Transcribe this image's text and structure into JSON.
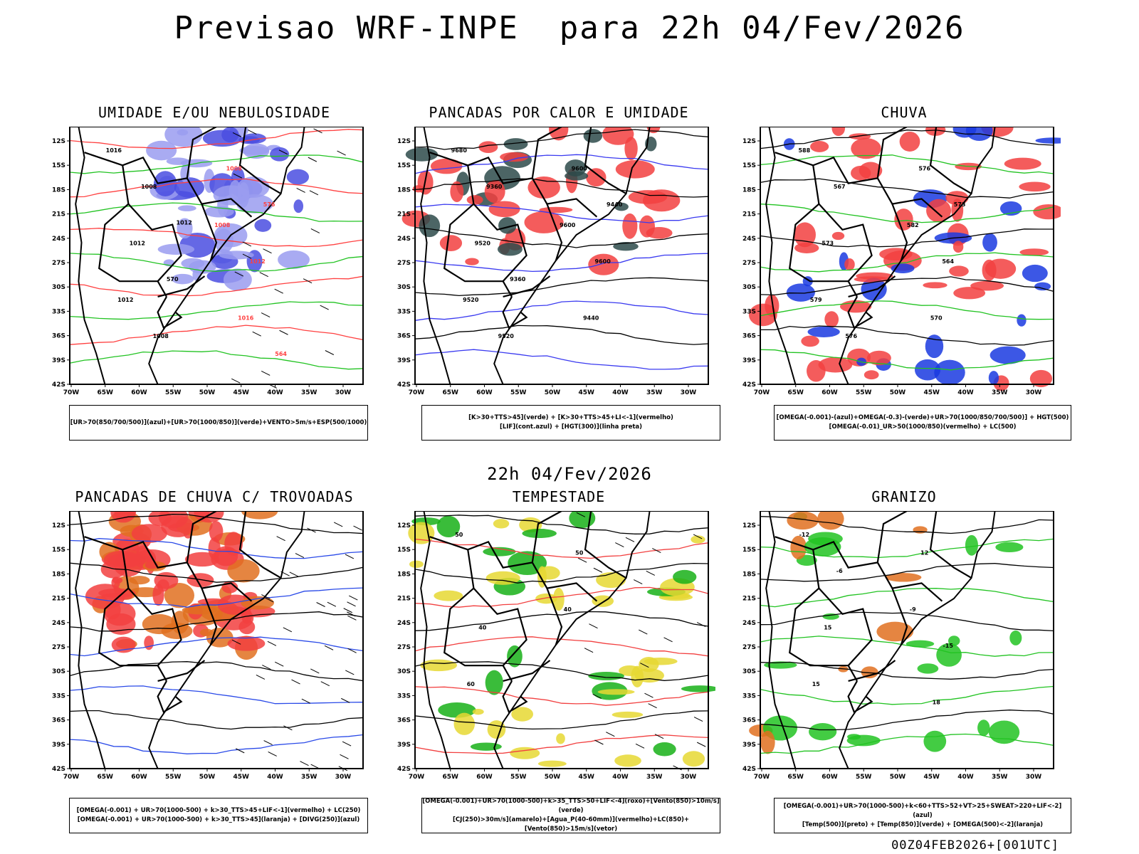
{
  "title": "Previsao WRF-INPE  para 22h 04/Fev/2026",
  "mid_title": "22h 04/Fev/2026",
  "footer": "00Z04FEB2026+[001UTC]",
  "axes": {
    "lat_labels": [
      "12S",
      "15S",
      "18S",
      "21S",
      "24S",
      "27S",
      "30S",
      "33S",
      "36S",
      "39S",
      "42S"
    ],
    "lon_labels": [
      "70W",
      "65W",
      "60W",
      "55W",
      "50W",
      "45W",
      "40W",
      "35W",
      "30W"
    ]
  },
  "panels": [
    {
      "id": "umidade",
      "title": "UMIDADE E/OU NEBULOSIDADE",
      "legend": [
        "[UR>70(850/700/500)](azul)+[UR>70(1000/850)](verde)+VENTO>5m/s+ESP(500/1000)"
      ],
      "contour_labels": [
        "1016",
        "1008",
        "1012",
        "1008",
        "1012",
        "1016",
        "1008",
        "1012",
        "1008",
        "576",
        "570",
        "564",
        "1012"
      ],
      "colors": {
        "fill_a": "#9a9cf0",
        "fill_b": "#4a4ee0",
        "contour_a": "#22c322",
        "contour_b": "#ff4040"
      }
    },
    {
      "id": "pancadas",
      "title": "PANCADAS POR CALOR E UMIDADE",
      "legend": [
        "[K>30+TTS>45](verde) + [K>30+TTS>45+LI<-1](vermelho)",
        "[LIF](cont.azul) + [HGT(300)](linha preta)"
      ],
      "contour_labels": [
        "9680",
        "9600",
        "9520",
        "9600",
        "9520",
        "9440",
        "9360",
        "9600",
        "9520",
        "9440",
        "9360"
      ],
      "colors": {
        "fill_a": "#f24040",
        "fill_b": "#2d4a4a",
        "contour_a": "#3a3af0",
        "contour_b": "#000000"
      }
    },
    {
      "id": "chuva",
      "title": "CHUVA",
      "legend": [
        "[OMEGA(-0.001)-(azul)+OMEGA(-0.3)-(verde)+UR>70(1000/850/700/500)] + HGT(500)",
        "[OMEGA(-0.01)_UR>50(1000/850)(vermelho) + LC(500)"
      ],
      "contour_labels": [
        "588",
        "582",
        "579",
        "576",
        "573",
        "570",
        "567",
        "564",
        "576",
        "573"
      ],
      "colors": {
        "fill_a": "#f24040",
        "fill_b": "#1a3ae0",
        "contour_a": "#22c322",
        "contour_b": "#000000"
      }
    },
    {
      "id": "trovoadas",
      "title": "PANCADAS DE CHUVA C/ TROVOADAS",
      "legend": [
        "[OMEGA(-0.001) + UR>70(1000-500) + k>30_TTS>45+LIF<-1](vermelho) + LC(250)",
        "[OMEGA(-0.001) + UR>70(1000-500) + k>30_TTS>45](laranja) + [DIVG(250)](azul)"
      ],
      "contour_labels": [],
      "colors": {
        "fill_a": "#f24040",
        "fill_b": "#e07020",
        "contour_a": "#2a4ae8",
        "contour_b": "#000000"
      }
    },
    {
      "id": "tempestade",
      "title": "TEMPESTADE",
      "legend": [
        "[OMEGA(-0.001)+UR>70(1000-500)+k>35_TTS>50+LIF<-4](roxo)+[Vento(850)>10m/s](verde)",
        "[CJ(250)>30m/s](amarelo)+[Agua_P(40-60mm)](vermelho)+LC(850)+[Vento(850)>15m/s](vetor)"
      ],
      "contour_labels": [
        "50",
        "40",
        "60",
        "50",
        "40"
      ],
      "colors": {
        "fill_a": "#e6d832",
        "fill_b": "#17b017",
        "contour_a": "#f24040",
        "contour_b": "#000000"
      }
    },
    {
      "id": "granizo",
      "title": "GRANIZO",
      "legend": [
        "[OMEGA(-0.001)+UR>70(1000-500)+k<60+TTS>52+VT>25+SWEAT>220+LIF<-2](azul)",
        "[Temp(500)](preto) + [Temp(850)](verde) + [OMEGA(500)<-2](laranja)"
      ],
      "contour_labels": [
        "-12",
        "-9",
        "15",
        "12",
        "15",
        "18",
        "-6",
        "-15"
      ],
      "colors": {
        "fill_a": "#22c322",
        "fill_b": "#e07020",
        "contour_a": "#22c322",
        "contour_b": "#000000"
      }
    }
  ]
}
